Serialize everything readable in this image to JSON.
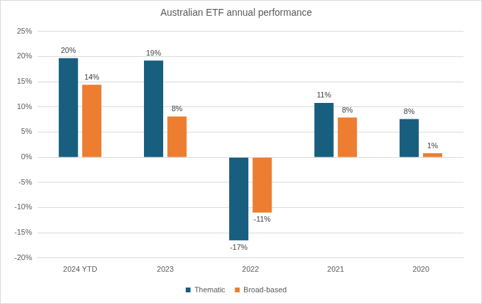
{
  "chart_data": {
    "type": "bar",
    "title": "Australian ETF annual performance",
    "categories": [
      "2024 YTD",
      "2023",
      "2022",
      "2021",
      "2020"
    ],
    "series": [
      {
        "name": "Thematic",
        "color": "#175e7f",
        "values": [
          19.7,
          19.2,
          -16.5,
          10.8,
          7.6
        ],
        "value_labels": [
          "20%",
          "19%",
          "-17%",
          "11%",
          "8%"
        ]
      },
      {
        "name": "Broad-based",
        "color": "#ed7d31",
        "values": [
          14.4,
          8.1,
          -11,
          7.9,
          0.8
        ],
        "value_labels": [
          "14%",
          "8%",
          "-11%",
          "8%",
          "1%"
        ]
      }
    ],
    "ylim": [
      -20,
      25
    ],
    "yticks": [
      {
        "value": -20,
        "label": "-20%"
      },
      {
        "value": -15,
        "label": "-15%"
      },
      {
        "value": -10,
        "label": "-10%"
      },
      {
        "value": -5,
        "label": "-5%"
      },
      {
        "value": 0,
        "label": "0%"
      },
      {
        "value": 5,
        "label": "5%"
      },
      {
        "value": 10,
        "label": "10%"
      },
      {
        "value": 15,
        "label": "15%"
      },
      {
        "value": 20,
        "label": "20%"
      },
      {
        "value": 25,
        "label": "25%"
      }
    ],
    "grid": true,
    "legend": "bottom",
    "data_labels": true
  }
}
